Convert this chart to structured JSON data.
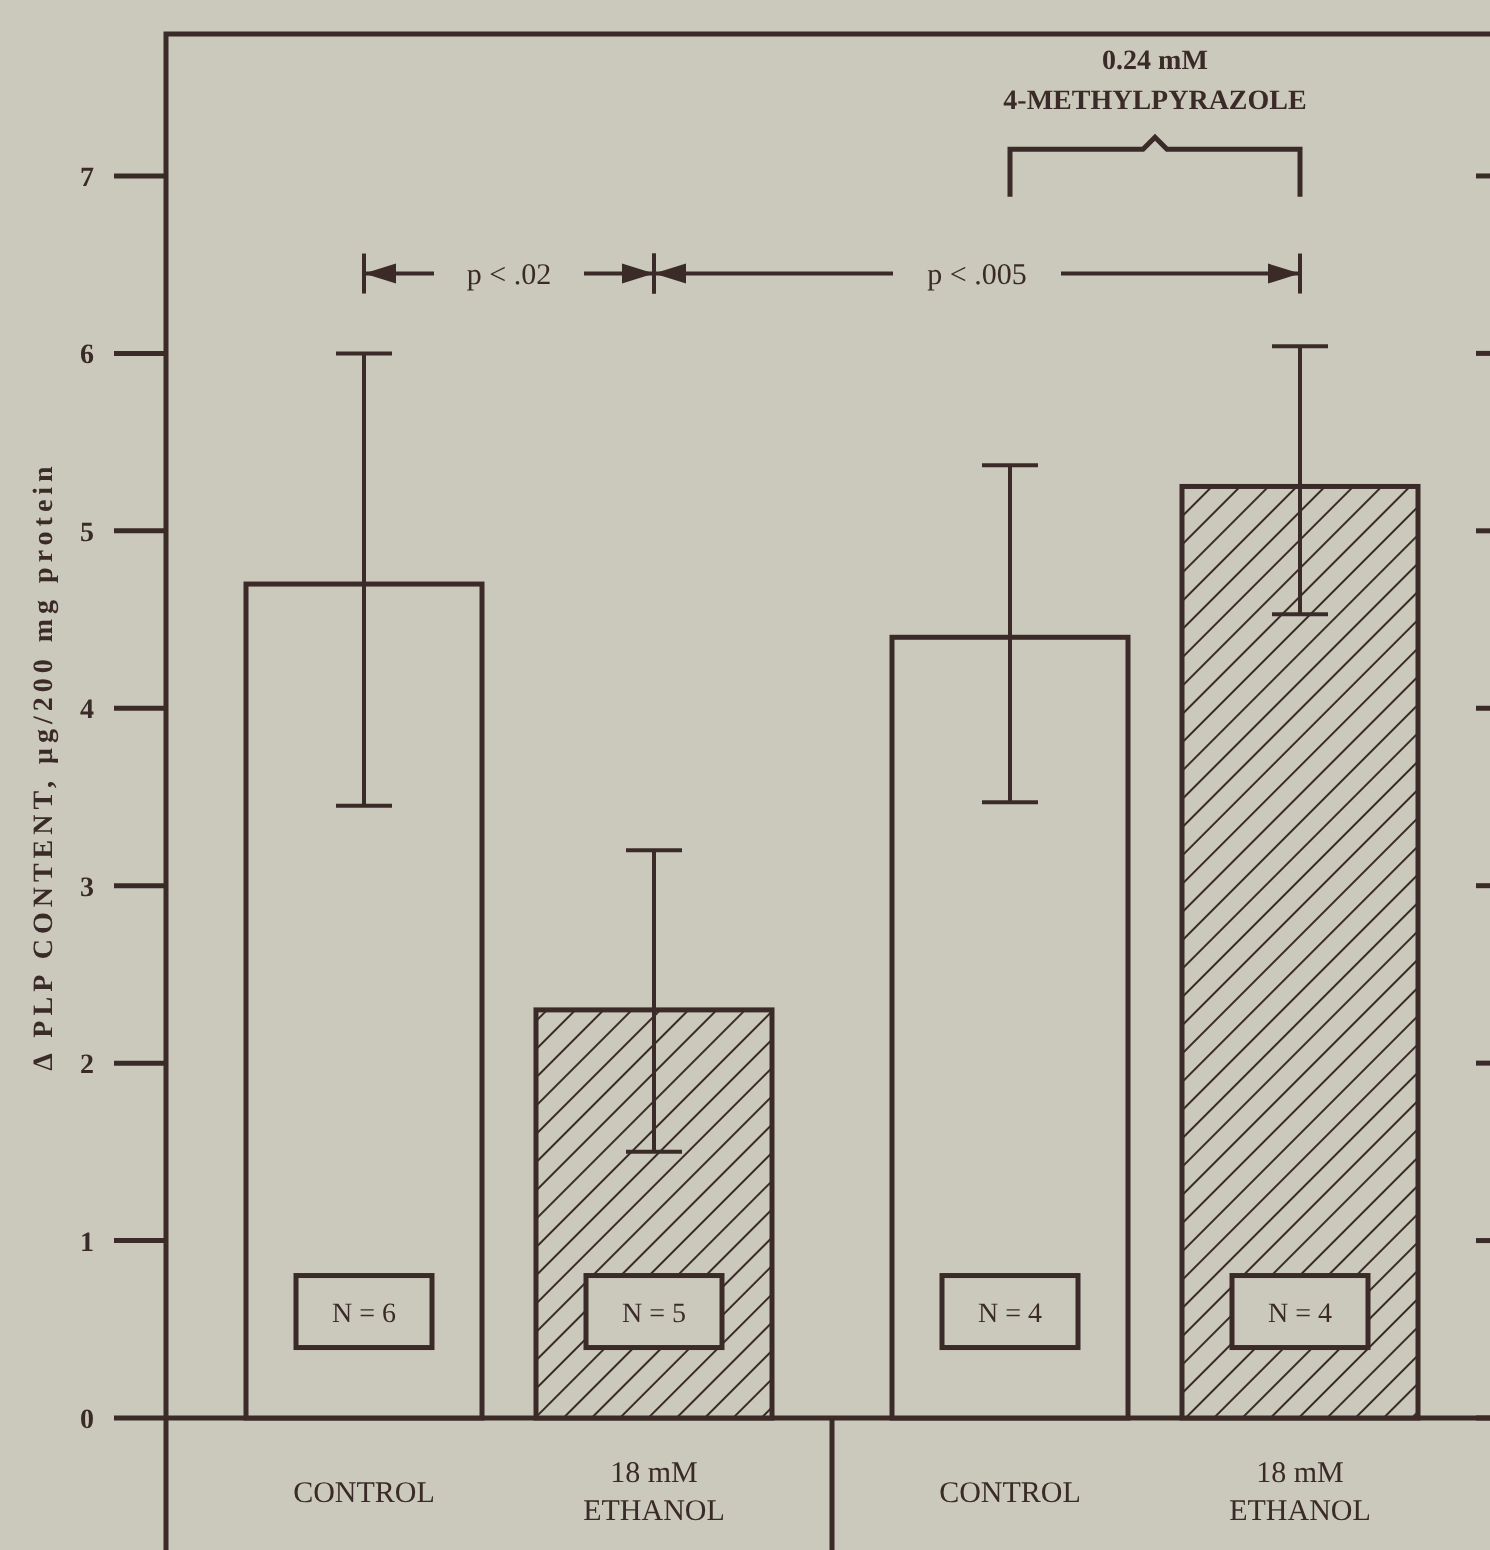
{
  "chart_data": {
    "type": "bar",
    "ylabel": "Δ PLP CONTENT, μg/200 mg protein",
    "categories": [
      "CONTROL",
      "18 mM\nETHANOL",
      "CONTROL",
      "18 mM\nETHANOL"
    ],
    "series": [
      {
        "color": "#3b2b28",
        "values": [
          4.7,
          null,
          4.4,
          null
        ],
        "errors": [
          [
            3.45,
            6.0
          ],
          null,
          [
            3.47,
            5.37
          ],
          null
        ]
      },
      {
        "color": "#3b2b28",
        "values": [
          null,
          2.3,
          null,
          5.25
        ],
        "errors": [
          null,
          [
            1.5,
            3.2
          ],
          null,
          [
            4.53,
            6.04
          ]
        ]
      }
    ],
    "ylim": [
      0,
      7.8
    ],
    "yticks": [
      0,
      1,
      2,
      3,
      4,
      5,
      6,
      7
    ],
    "grid": false,
    "annotations": [
      "p < .02",
      "p < .005",
      "0.24 mM\n4-METHYLPYRAZOLE",
      "N = 6",
      "N = 5",
      "N = 4",
      "N = 4"
    ]
  }
}
